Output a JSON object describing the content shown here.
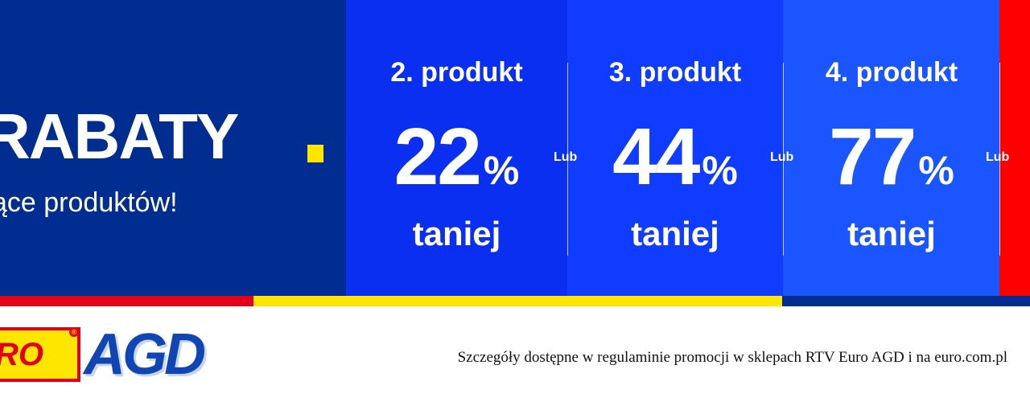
{
  "hero": {
    "headline": "RABATY",
    "subline": "ące produktów!"
  },
  "offers": [
    {
      "title": "2. produkt",
      "percent": "22",
      "percent_symbol": "%",
      "subtitle": "taniej"
    },
    {
      "title": "3. produkt",
      "percent": "44",
      "percent_symbol": "%",
      "subtitle": "taniej"
    },
    {
      "title": "4. produkt",
      "percent": "77",
      "percent_symbol": "%",
      "subtitle": "taniej"
    }
  ],
  "separator_label": "Lub",
  "footer": {
    "logo": {
      "left_text": "RO",
      "registered": "®",
      "right_text": "AGD"
    },
    "disclaimer": "Szczegóły dostępne w regulaminie promocji w sklepach RTV Euro AGD i na euro.com.pl"
  },
  "colors": {
    "navy": "#002d8f",
    "blue_1": "#0a2ff0",
    "blue_2": "#0f3cff",
    "blue_3": "#1a55ff",
    "red": "#e3001b",
    "yellow": "#ffe600"
  }
}
